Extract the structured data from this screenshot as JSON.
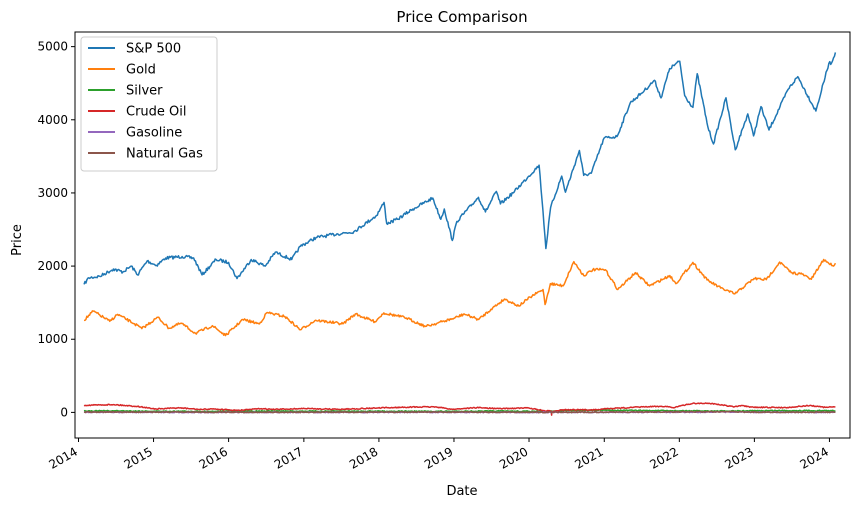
{
  "chart_data": {
    "type": "line",
    "title": "Price Comparison",
    "xlabel": "Date",
    "ylabel": "Price",
    "xlim": [
      "2013-12-15",
      "2024-04-10"
    ],
    "ylim": [
      -350,
      5200
    ],
    "x_ticks": [
      "2014-01-01",
      "2015-01-01",
      "2016-01-01",
      "2017-01-01",
      "2018-01-01",
      "2019-01-01",
      "2020-01-01",
      "2021-01-01",
      "2022-01-01",
      "2023-01-01",
      "2024-01-01"
    ],
    "x_tick_labels": [
      "2014",
      "2015",
      "2016",
      "2017",
      "2018",
      "2019",
      "2020",
      "2021",
      "2022",
      "2023",
      "2024"
    ],
    "y_ticks": [
      0,
      1000,
      2000,
      3000,
      4000,
      5000
    ],
    "y_tick_labels": [
      "0",
      "1000",
      "2000",
      "3000",
      "4000",
      "5000"
    ],
    "grid": false,
    "legend_position": "top-left",
    "series": [
      {
        "name": "S&P 500",
        "color": "#1f77b4",
        "points": [
          [
            "2014-01-28",
            1750
          ],
          [
            "2014-02-20",
            1840
          ],
          [
            "2014-04-15",
            1860
          ],
          [
            "2014-06-20",
            1960
          ],
          [
            "2014-08-05",
            1920
          ],
          [
            "2014-09-15",
            2000
          ],
          [
            "2014-10-15",
            1880
          ],
          [
            "2014-12-01",
            2070
          ],
          [
            "2015-01-15",
            2010
          ],
          [
            "2015-03-01",
            2110
          ],
          [
            "2015-05-20",
            2130
          ],
          [
            "2015-07-15",
            2110
          ],
          [
            "2015-08-25",
            1880
          ],
          [
            "2015-11-01",
            2090
          ],
          [
            "2016-01-01",
            2050
          ],
          [
            "2016-02-11",
            1830
          ],
          [
            "2016-04-20",
            2090
          ],
          [
            "2016-06-27",
            2000
          ],
          [
            "2016-08-15",
            2190
          ],
          [
            "2016-11-03",
            2090
          ],
          [
            "2016-12-15",
            2270
          ],
          [
            "2017-03-01",
            2390
          ],
          [
            "2017-06-15",
            2440
          ],
          [
            "2017-09-01",
            2470
          ],
          [
            "2017-12-20",
            2690
          ],
          [
            "2018-01-26",
            2870
          ],
          [
            "2018-02-08",
            2580
          ],
          [
            "2018-04-01",
            2640
          ],
          [
            "2018-06-15",
            2780
          ],
          [
            "2018-09-20",
            2930
          ],
          [
            "2018-10-29",
            2640
          ],
          [
            "2018-11-15",
            2780
          ],
          [
            "2018-12-24",
            2350
          ],
          [
            "2019-01-15",
            2610
          ],
          [
            "2019-04-30",
            2940
          ],
          [
            "2019-06-03",
            2740
          ],
          [
            "2019-07-26",
            3020
          ],
          [
            "2019-08-15",
            2850
          ],
          [
            "2019-10-15",
            3000
          ],
          [
            "2019-12-31",
            3230
          ],
          [
            "2020-02-19",
            3380
          ],
          [
            "2020-03-09",
            2750
          ],
          [
            "2020-03-23",
            2240
          ],
          [
            "2020-04-15",
            2800
          ],
          [
            "2020-06-08",
            3230
          ],
          [
            "2020-06-26",
            3010
          ],
          [
            "2020-09-02",
            3580
          ],
          [
            "2020-09-23",
            3240
          ],
          [
            "2020-10-30",
            3270
          ],
          [
            "2020-12-31",
            3750
          ],
          [
            "2021-03-04",
            3770
          ],
          [
            "2021-05-07",
            4230
          ],
          [
            "2021-07-15",
            4400
          ],
          [
            "2021-09-02",
            4540
          ],
          [
            "2021-10-04",
            4300
          ],
          [
            "2021-11-15",
            4700
          ],
          [
            "2022-01-03",
            4800
          ],
          [
            "2022-01-27",
            4330
          ],
          [
            "2022-03-08",
            4170
          ],
          [
            "2022-03-29",
            4630
          ],
          [
            "2022-05-20",
            3900
          ],
          [
            "2022-06-16",
            3670
          ],
          [
            "2022-08-16",
            4300
          ],
          [
            "2022-09-30",
            3590
          ],
          [
            "2022-11-30",
            4080
          ],
          [
            "2022-12-28",
            3780
          ],
          [
            "2023-02-02",
            4180
          ],
          [
            "2023-03-13",
            3860
          ],
          [
            "2023-06-15",
            4420
          ],
          [
            "2023-07-31",
            4590
          ],
          [
            "2023-10-27",
            4120
          ],
          [
            "2023-12-29",
            4770
          ],
          [
            "2024-01-12",
            4780
          ],
          [
            "2024-01-30",
            4920
          ]
        ]
      },
      {
        "name": "Gold",
        "color": "#ff7f0e",
        "points": [
          [
            "2014-01-28",
            1260
          ],
          [
            "2014-03-14",
            1385
          ],
          [
            "2014-06-02",
            1245
          ],
          [
            "2014-07-10",
            1340
          ],
          [
            "2014-10-01",
            1210
          ],
          [
            "2014-11-05",
            1145
          ],
          [
            "2015-01-22",
            1300
          ],
          [
            "2015-03-17",
            1150
          ],
          [
            "2015-05-15",
            1220
          ],
          [
            "2015-07-24",
            1080
          ],
          [
            "2015-10-14",
            1185
          ],
          [
            "2015-12-17",
            1050
          ],
          [
            "2016-03-10",
            1270
          ],
          [
            "2016-05-30",
            1210
          ],
          [
            "2016-07-06",
            1365
          ],
          [
            "2016-10-01",
            1310
          ],
          [
            "2016-12-15",
            1130
          ],
          [
            "2017-02-27",
            1260
          ],
          [
            "2017-07-10",
            1210
          ],
          [
            "2017-09-08",
            1345
          ],
          [
            "2017-12-12",
            1240
          ],
          [
            "2018-01-25",
            1360
          ],
          [
            "2018-05-15",
            1290
          ],
          [
            "2018-08-16",
            1175
          ],
          [
            "2018-12-31",
            1285
          ],
          [
            "2019-02-20",
            1345
          ],
          [
            "2019-05-01",
            1270
          ],
          [
            "2019-06-30",
            1410
          ],
          [
            "2019-09-04",
            1550
          ],
          [
            "2019-11-12",
            1455
          ],
          [
            "2020-01-07",
            1575
          ],
          [
            "2020-03-09",
            1680
          ],
          [
            "2020-03-19",
            1475
          ],
          [
            "2020-04-14",
            1760
          ],
          [
            "2020-06-15",
            1730
          ],
          [
            "2020-08-06",
            2060
          ],
          [
            "2020-09-23",
            1870
          ],
          [
            "2020-11-06",
            1950
          ],
          [
            "2021-01-06",
            1950
          ],
          [
            "2021-03-08",
            1680
          ],
          [
            "2021-06-01",
            1910
          ],
          [
            "2021-08-09",
            1730
          ],
          [
            "2021-11-16",
            1870
          ],
          [
            "2021-12-15",
            1760
          ],
          [
            "2022-03-08",
            2050
          ],
          [
            "2022-05-16",
            1810
          ],
          [
            "2022-07-21",
            1700
          ],
          [
            "2022-09-28",
            1620
          ],
          [
            "2022-12-30",
            1830
          ],
          [
            "2023-02-28",
            1815
          ],
          [
            "2023-05-04",
            2055
          ],
          [
            "2023-06-29",
            1910
          ],
          [
            "2023-08-21",
            1890
          ],
          [
            "2023-10-05",
            1820
          ],
          [
            "2023-12-04",
            2090
          ],
          [
            "2024-01-17",
            2005
          ],
          [
            "2024-01-30",
            2040
          ]
        ]
      },
      {
        "name": "Silver",
        "color": "#2ca02c",
        "points": [
          [
            "2014-01-28",
            20
          ],
          [
            "2014-07-01",
            21
          ],
          [
            "2015-01-01",
            16
          ],
          [
            "2015-12-15",
            14
          ],
          [
            "2016-07-06",
            20
          ],
          [
            "2017-01-01",
            16
          ],
          [
            "2018-01-01",
            17
          ],
          [
            "2018-09-01",
            14
          ],
          [
            "2019-09-01",
            18
          ],
          [
            "2020-03-18",
            12
          ],
          [
            "2020-08-07",
            28
          ],
          [
            "2021-02-01",
            29
          ],
          [
            "2021-12-01",
            22
          ],
          [
            "2022-08-31",
            18
          ],
          [
            "2023-04-15",
            25
          ],
          [
            "2023-12-01",
            24
          ],
          [
            "2024-01-30",
            23
          ]
        ]
      },
      {
        "name": "Crude Oil",
        "color": "#d62728",
        "points": [
          [
            "2014-01-28",
            97
          ],
          [
            "2014-06-20",
            107
          ],
          [
            "2014-10-15",
            82
          ],
          [
            "2015-01-13",
            46
          ],
          [
            "2015-05-06",
            62
          ],
          [
            "2015-08-24",
            38
          ],
          [
            "2015-10-09",
            49
          ],
          [
            "2016-02-11",
            26
          ],
          [
            "2016-06-08",
            51
          ],
          [
            "2016-08-02",
            40
          ],
          [
            "2017-01-03",
            53
          ],
          [
            "2017-06-21",
            42
          ],
          [
            "2017-12-29",
            60
          ],
          [
            "2018-05-22",
            72
          ],
          [
            "2018-10-03",
            76
          ],
          [
            "2018-12-24",
            42
          ],
          [
            "2019-04-23",
            66
          ],
          [
            "2019-08-07",
            51
          ],
          [
            "2019-12-31",
            61
          ],
          [
            "2020-03-18",
            20
          ],
          [
            "2020-04-17",
            18
          ],
          [
            "2020-04-20",
            -37
          ],
          [
            "2020-04-21",
            10
          ],
          [
            "2020-06-01",
            35
          ],
          [
            "2020-11-02",
            35
          ],
          [
            "2020-12-31",
            48
          ],
          [
            "2021-07-06",
            75
          ],
          [
            "2021-10-26",
            84
          ],
          [
            "2021-12-01",
            65
          ],
          [
            "2022-03-08",
            124
          ],
          [
            "2022-06-08",
            122
          ],
          [
            "2022-09-26",
            77
          ],
          [
            "2022-11-07",
            92
          ],
          [
            "2022-12-09",
            71
          ],
          [
            "2023-03-17",
            67
          ],
          [
            "2023-06-12",
            67
          ],
          [
            "2023-09-27",
            94
          ],
          [
            "2023-12-12",
            68
          ],
          [
            "2024-01-30",
            77
          ]
        ]
      },
      {
        "name": "Gasoline",
        "color": "#9467bd",
        "points": [
          [
            "2014-01-28",
            2.6
          ],
          [
            "2015-01-15",
            1.4
          ],
          [
            "2016-02-11",
            1.0
          ],
          [
            "2018-05-15",
            2.2
          ],
          [
            "2020-04-20",
            0.6
          ],
          [
            "2022-06-09",
            4.2
          ],
          [
            "2023-12-15",
            2.1
          ],
          [
            "2024-01-30",
            2.3
          ]
        ]
      },
      {
        "name": "Natural Gas",
        "color": "#8c564b",
        "points": [
          [
            "2014-01-28",
            5.0
          ],
          [
            "2015-06-01",
            2.8
          ],
          [
            "2016-03-01",
            1.7
          ],
          [
            "2018-11-14",
            4.8
          ],
          [
            "2020-06-25",
            1.5
          ],
          [
            "2022-08-22",
            9.7
          ],
          [
            "2023-02-21",
            2.0
          ],
          [
            "2024-01-30",
            2.1
          ]
        ]
      }
    ]
  }
}
